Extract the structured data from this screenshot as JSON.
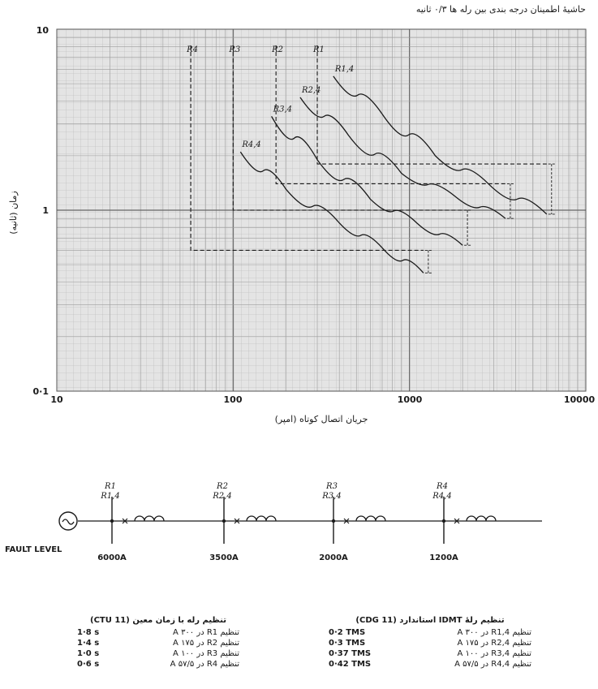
{
  "header": {
    "margin_note": "حاشیهٔ اطمینان درجه بندی بین رله ها ۰/۳ ثانیه"
  },
  "plot": {
    "type": "log-log",
    "x_axis": {
      "label": "جریان اتصال کوتاه (امپر)",
      "ticks": [
        "10",
        "100",
        "1000",
        "10000"
      ],
      "range": [
        10,
        10000
      ]
    },
    "y_axis": {
      "label": "زمان (ثانیه)",
      "ticks": [
        "10",
        "1",
        "0·1"
      ],
      "range": [
        0.1,
        10
      ]
    },
    "definite_time_labels": [
      "R4",
      "R3",
      "R2",
      "R1"
    ],
    "idmt_labels": [
      "R1,4",
      "R2,4",
      "R3,4",
      "R4,4"
    ],
    "definite_time_relays": [
      {
        "name": "R4",
        "pickup_A": 57.5,
        "time_s": 0.6,
        "end_A": 1200
      },
      {
        "name": "R3",
        "pickup_A": 100,
        "time_s": 1.0,
        "end_A": 2000
      },
      {
        "name": "R2",
        "pickup_A": 175,
        "time_s": 1.4,
        "end_A": 3500
      },
      {
        "name": "R1",
        "pickup_A": 300,
        "time_s": 1.8,
        "end_A": 6000
      }
    ],
    "idmt_curves": [
      {
        "name": "R4,4",
        "x": [
          110,
          200,
          400,
          700,
          1200
        ],
        "y": [
          2.1,
          1.3,
          0.85,
          0.62,
          0.45
        ]
      },
      {
        "name": "R3,4",
        "x": [
          165,
          300,
          600,
          1100,
          2000
        ],
        "y": [
          3.3,
          1.9,
          1.15,
          0.85,
          0.64
        ]
      },
      {
        "name": "R2,4",
        "x": [
          240,
          450,
          900,
          1800,
          3500
        ],
        "y": [
          4.2,
          2.6,
          1.6,
          1.2,
          0.9
        ]
      },
      {
        "name": "R1,4",
        "x": [
          370,
          700,
          1400,
          2800,
          6000
        ],
        "y": [
          5.5,
          3.4,
          2.0,
          1.4,
          0.95
        ]
      }
    ]
  },
  "single_line": {
    "source_symbol": "ac-source",
    "fault_level_label": "FAULT LEVEL",
    "buses": [
      {
        "top": "R1",
        "bottom": "R1,4",
        "fault": "6000A"
      },
      {
        "top": "R2",
        "bottom": "R2,4",
        "fault": "3500A"
      },
      {
        "top": "R3",
        "bottom": "R3,4",
        "fault": "2000A"
      },
      {
        "top": "R4",
        "bottom": "R4,4",
        "fault": "1200A"
      }
    ]
  },
  "settings_idmt": {
    "title": "تنظیم رلهٔ IDMT استاندارد (CDG 11)",
    "rows": [
      {
        "desc": "تنظیم R1,4 در ۳۰۰ A",
        "value": "0·2 TMS"
      },
      {
        "desc": "تنظیم R2,4 در ۱۷۵ A",
        "value": "0·3 TMS"
      },
      {
        "desc": "تنظیم R3,4 در ۱۰۰ A",
        "value": "0·37 TMS"
      },
      {
        "desc": "تنظیم R4,4 در ۵۷/۵ A",
        "value": "0·42 TMS"
      }
    ]
  },
  "settings_definite": {
    "title": "تنظیم رله با زمان معین (CTU 11)",
    "rows": [
      {
        "desc": "تنظیم R1 در ۳۰۰ A",
        "value": "1·8 s"
      },
      {
        "desc": "تنظیم R2 در ۱۷۵ A",
        "value": "1·4 s"
      },
      {
        "desc": "تنظیم R3 در ۱۰۰ A",
        "value": "1·0 s"
      },
      {
        "desc": "تنظیم R4 در ۵۷/۵ A",
        "value": "0·6 s"
      }
    ]
  }
}
